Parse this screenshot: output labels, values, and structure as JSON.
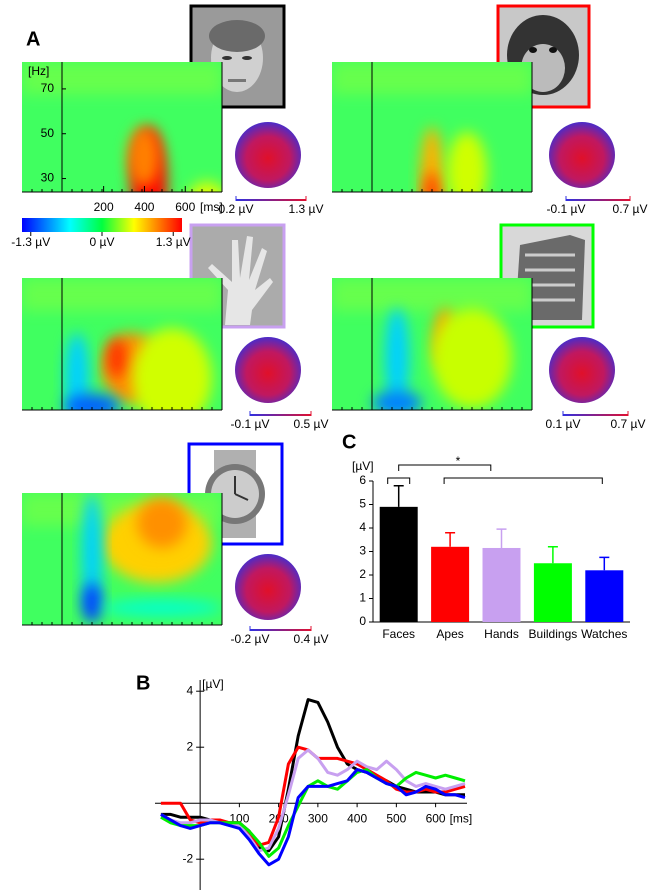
{
  "panel_labels": [
    "A",
    "B",
    "C"
  ],
  "chart_data": [
    {
      "type": "time-frequency",
      "ylabel": "[Hz]",
      "xlabel": "[ms]",
      "ylim": [
        24,
        82
      ],
      "yticks": [
        30,
        50,
        70
      ],
      "xlim": [
        -200,
        780
      ],
      "xticks": [
        200,
        400,
        600
      ],
      "clim": [
        -1.46,
        1.46
      ],
      "cticks": [
        {
          "value": -1.3,
          "label": "-1.3 µV"
        },
        {
          "value": 0,
          "label": "0 µV"
        },
        {
          "value": 1.3,
          "label": "1.3 µV"
        }
      ],
      "topo_ticks": [
        {
          "value": 0.2,
          "label": "0.2 µV"
        },
        {
          "value": 1.3,
          "label": "1.3 µV"
        }
      ]
    },
    {
      "type": "time-frequency",
      "topo_ticks": [
        {
          "value": -0.1,
          "label": "-0.1 µV"
        },
        {
          "value": 0.7,
          "label": "0.7 µV"
        }
      ]
    },
    {
      "type": "time-frequency",
      "topo_ticks": [
        {
          "value": -0.1,
          "label": "-0.1 µV"
        },
        {
          "value": 0.5,
          "label": "0.5 µV"
        }
      ]
    },
    {
      "type": "time-frequency",
      "topo_ticks": [
        {
          "value": 0.1,
          "label": "0.1 µV"
        },
        {
          "value": 0.7,
          "label": "0.7 µV"
        }
      ]
    },
    {
      "type": "time-frequency",
      "topo_ticks": [
        {
          "value": -0.2,
          "label": "-0.2 µV"
        },
        {
          "value": 0.4,
          "label": "0.4 µV"
        }
      ]
    },
    {
      "type": "bar",
      "ylabel": "[µV]",
      "categories": [
        "Faces",
        "Apes",
        "Hands",
        "Buildings",
        "Watches"
      ],
      "values": [
        4.9,
        3.2,
        3.15,
        2.5,
        2.2
      ],
      "errors": [
        0.9,
        0.6,
        0.8,
        0.7,
        0.55
      ],
      "colors": [
        "#000000",
        "#ff0000",
        "#c8a0f0",
        "#00ff00",
        "#0000ff"
      ],
      "ylim": [
        0,
        6
      ],
      "yticks": [
        0,
        1,
        2,
        3,
        4,
        5,
        6
      ],
      "annotation": "*"
    },
    {
      "type": "line",
      "ylabel": "[µV]",
      "xlabel": "[ms]",
      "xlim": [
        -115,
        680
      ],
      "ylim": [
        -3.1,
        4.4
      ],
      "xticks": [
        100,
        200,
        300,
        400,
        500,
        600
      ],
      "yticks": [
        -2,
        2,
        4
      ],
      "x": [
        -100,
        -75,
        -50,
        -25,
        0,
        25,
        50,
        75,
        100,
        125,
        150,
        175,
        200,
        225,
        250,
        275,
        300,
        325,
        350,
        375,
        400,
        425,
        450,
        475,
        500,
        525,
        550,
        575,
        600,
        625,
        650,
        675
      ],
      "series": [
        {
          "color": "#000000",
          "values": [
            -0.4,
            -0.4,
            -0.5,
            -0.5,
            -0.5,
            -0.6,
            -0.7,
            -0.7,
            -0.7,
            -1.0,
            -1.6,
            -1.7,
            -1.2,
            0.5,
            2.4,
            3.7,
            3.6,
            2.9,
            2.0,
            1.4,
            1.2,
            1.1,
            0.9,
            0.8,
            0.6,
            0.5,
            0.4,
            0.4,
            0.4,
            0.3,
            0.3,
            0.3
          ]
        },
        {
          "color": "#ff0000",
          "values": [
            0,
            0,
            0,
            -0.6,
            -0.7,
            -0.6,
            -0.6,
            -0.7,
            -0.7,
            -1.1,
            -1.5,
            -1.4,
            -0.5,
            1.4,
            2.0,
            1.9,
            1.6,
            1.6,
            1.6,
            1.5,
            1.4,
            1.2,
            1.0,
            0.8,
            0.5,
            0.4,
            0.4,
            0.5,
            0.4,
            0.4,
            0.5,
            0.6
          ]
        },
        {
          "color": "#c8a0f0",
          "values": [
            -0.4,
            -0.6,
            -0.7,
            -0.7,
            -0.6,
            -0.6,
            -0.7,
            -0.8,
            -0.8,
            -1.2,
            -1.7,
            -1.6,
            -0.9,
            0.3,
            1.6,
            1.9,
            1.6,
            1.1,
            1.0,
            1.2,
            1.5,
            1.3,
            1.2,
            1.5,
            1.2,
            0.8,
            0.6,
            0.7,
            0.6,
            0.5,
            0.6,
            0.7
          ]
        },
        {
          "color": "#00ee00",
          "values": [
            -0.5,
            -0.7,
            -0.8,
            -0.8,
            -0.8,
            -0.7,
            -0.7,
            -0.7,
            -0.7,
            -1.0,
            -1.4,
            -1.9,
            -1.6,
            -0.8,
            -0.1,
            0.6,
            0.8,
            0.6,
            0.5,
            0.8,
            1.1,
            1.2,
            0.9,
            0.7,
            0.6,
            0.9,
            1.1,
            1.0,
            0.9,
            1.0,
            0.9,
            0.8
          ]
        },
        {
          "color": "#0000ff",
          "values": [
            -0.4,
            -0.6,
            -0.8,
            -0.9,
            -0.8,
            -0.7,
            -0.7,
            -0.8,
            -0.9,
            -1.3,
            -1.8,
            -2.2,
            -2.0,
            -1.2,
            0.2,
            0.6,
            0.6,
            0.6,
            0.7,
            0.8,
            1.2,
            1.1,
            0.9,
            0.7,
            0.6,
            0.3,
            0.4,
            0.6,
            0.5,
            0.3,
            0.3,
            0.2
          ]
        }
      ]
    }
  ]
}
